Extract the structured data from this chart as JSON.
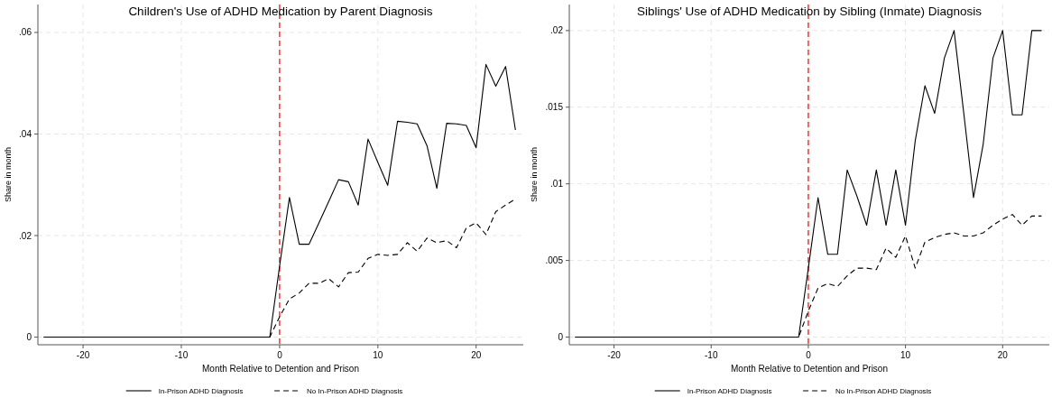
{
  "chart_data": [
    {
      "type": "line",
      "title": "Children's Use of ADHD Medication by Parent Diagnosis",
      "xlabel": "Month Relative to Detention and Prison",
      "ylabel": "Share in month",
      "x": [
        -24,
        -23,
        -22,
        -21,
        -20,
        -19,
        -18,
        -17,
        -16,
        -15,
        -14,
        -13,
        -12,
        -11,
        -10,
        -9,
        -8,
        -7,
        -6,
        -5,
        -4,
        -3,
        -2,
        -1,
        0,
        1,
        2,
        3,
        4,
        5,
        6,
        7,
        8,
        9,
        10,
        11,
        12,
        13,
        14,
        15,
        16,
        17,
        18,
        19,
        20,
        21,
        22,
        23,
        24
      ],
      "series": [
        {
          "name": "In-Prison ADHD Diagnosis",
          "color": "#000000",
          "line_style": "solid",
          "values": [
            0,
            0,
            0,
            0,
            0,
            0,
            0,
            0,
            0,
            0,
            0,
            0,
            0,
            0,
            0,
            0,
            0,
            0,
            0,
            0,
            0,
            0,
            0,
            0,
            0.014,
            0.0275,
            0.0183,
            0.0183,
            0.0225,
            0.0267,
            0.031,
            0.0306,
            0.026,
            0.039,
            0.0344,
            0.0299,
            0.0425,
            0.0423,
            0.042,
            0.0377,
            0.0293,
            0.0421,
            0.042,
            0.0417,
            0.0373,
            0.0537,
            0.0494,
            0.0533,
            0.0408
          ]
        },
        {
          "name": "No In-Prison ADHD Diagnosis",
          "color": "#000000",
          "line_style": "dashed",
          "values": [
            0,
            0,
            0,
            0,
            0,
            0,
            0,
            0,
            0,
            0,
            0,
            0,
            0,
            0,
            0,
            0,
            0,
            0,
            0,
            0,
            0,
            0,
            0,
            0,
            0.004,
            0.0075,
            0.0087,
            0.0106,
            0.0106,
            0.0115,
            0.0099,
            0.0127,
            0.0128,
            0.0155,
            0.0163,
            0.0161,
            0.0163,
            0.0186,
            0.0169,
            0.0195,
            0.0186,
            0.019,
            0.0176,
            0.0215,
            0.0225,
            0.0202,
            0.0247,
            0.026,
            0.0272
          ]
        }
      ],
      "xlim": [
        -24.6,
        24.8
      ],
      "xticks": [
        -20,
        -10,
        0,
        10,
        20
      ],
      "ylim": [
        -0.0015,
        0.0655
      ],
      "yticks": [
        0,
        {
          "value": 0.02,
          "label": ".02"
        },
        {
          "value": 0.04,
          "label": ".04"
        },
        {
          "value": 0.06,
          "label": ".06"
        }
      ],
      "ref_lines": [
        {
          "axis": "x",
          "value": 0,
          "color": "#ff0000",
          "line_style": "dashed"
        }
      ],
      "grid": true,
      "legend": "bottom"
    },
    {
      "type": "line",
      "title": "Siblings' Use of ADHD Medication by Sibling (Inmate) Diagnosis",
      "xlabel": "Month Relative to Detention and Prison",
      "ylabel": "Share in month",
      "x": [
        -24,
        -23,
        -22,
        -21,
        -20,
        -19,
        -18,
        -17,
        -16,
        -15,
        -14,
        -13,
        -12,
        -11,
        -10,
        -9,
        -8,
        -7,
        -6,
        -5,
        -4,
        -3,
        -2,
        -1,
        0,
        1,
        2,
        3,
        4,
        5,
        6,
        7,
        8,
        9,
        10,
        11,
        12,
        13,
        14,
        15,
        16,
        17,
        18,
        19,
        20,
        21,
        22,
        23,
        24
      ],
      "series": [
        {
          "name": "In-Prison ADHD Diagnosis",
          "color": "#000000",
          "line_style": "solid",
          "values": [
            0,
            0,
            0,
            0,
            0,
            0,
            0,
            0,
            0,
            0,
            0,
            0,
            0,
            0,
            0,
            0,
            0,
            0,
            0,
            0,
            0,
            0,
            0,
            0,
            0.0045,
            0.0091,
            0.0054,
            0.0054,
            0.0109,
            0.0092,
            0.0073,
            0.0109,
            0.0073,
            0.0109,
            0.0073,
            0.0128,
            0.0164,
            0.0146,
            0.0182,
            0.02,
            0.0146,
            0.0091,
            0.0126,
            0.0182,
            0.02,
            0.0145,
            0.0145,
            0.02,
            0.02
          ]
        },
        {
          "name": "No In-Prison ADHD Diagnosis",
          "color": "#000000",
          "line_style": "dashed",
          "values": [
            0,
            0,
            0,
            0,
            0,
            0,
            0,
            0,
            0,
            0,
            0,
            0,
            0,
            0,
            0,
            0,
            0,
            0,
            0,
            0,
            0,
            0,
            0,
            0,
            0.0017,
            0.0032,
            0.0035,
            0.0033,
            0.004,
            0.0045,
            0.0045,
            0.0044,
            0.0058,
            0.0052,
            0.0066,
            0.0045,
            0.0062,
            0.0065,
            0.0067,
            0.0068,
            0.0066,
            0.0066,
            0.0068,
            0.0073,
            0.0077,
            0.008,
            0.0073,
            0.0079,
            0.0079
          ]
        }
      ],
      "xlim": [
        -24.6,
        24.8
      ],
      "xticks": [
        -20,
        -10,
        0,
        10,
        20
      ],
      "ylim": [
        -0.0005,
        0.0217
      ],
      "yticks": [
        0,
        {
          "value": 0.005,
          "label": ".005"
        },
        {
          "value": 0.01,
          "label": ".01"
        },
        {
          "value": 0.015,
          "label": ".015"
        },
        {
          "value": 0.02,
          "label": ".02"
        }
      ],
      "ref_lines": [
        {
          "axis": "x",
          "value": 0,
          "color": "#ff0000",
          "line_style": "dashed"
        }
      ],
      "grid": true,
      "legend": "bottom"
    }
  ]
}
